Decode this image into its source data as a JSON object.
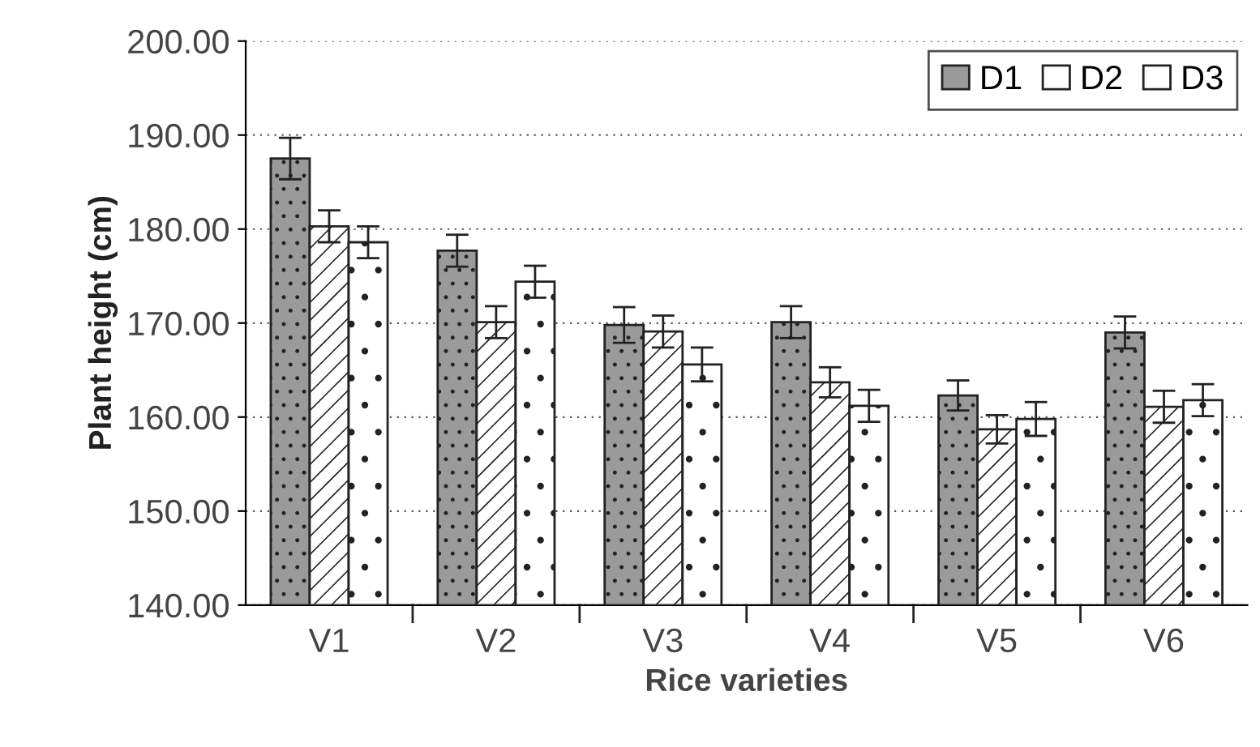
{
  "chart_data": {
    "type": "bar",
    "xlabel": "Rice varieties",
    "ylabel": "Plant height (cm)",
    "categories": [
      "V1",
      "V2",
      "V3",
      "V4",
      "V5",
      "V6"
    ],
    "series": [
      {
        "name": "D1",
        "color": "#9a9a9a",
        "values": [
          187.5,
          177.7,
          169.8,
          170.1,
          162.3,
          169.0
        ],
        "errors": [
          2.2,
          1.7,
          1.9,
          1.7,
          1.6,
          1.7
        ]
      },
      {
        "name": "D2",
        "color": "#ffffff",
        "values": [
          180.3,
          170.1,
          169.1,
          163.7,
          158.7,
          161.1
        ],
        "errors": [
          1.7,
          1.7,
          1.7,
          1.6,
          1.5,
          1.7
        ]
      },
      {
        "name": "D3",
        "color": "#ffffff",
        "values": [
          178.6,
          174.4,
          165.6,
          161.2,
          159.8,
          161.8
        ],
        "errors": [
          1.7,
          1.7,
          1.8,
          1.7,
          1.8,
          1.7
        ]
      }
    ],
    "ylim": [
      140,
      200
    ],
    "yticks": [
      {
        "value": 140,
        "label": "140.00"
      },
      {
        "value": 150,
        "label": "150.00"
      },
      {
        "value": 160,
        "label": "160.00"
      },
      {
        "value": 170,
        "label": "170.00"
      },
      {
        "value": 180,
        "label": "180.00"
      },
      {
        "value": 190,
        "label": "190.00"
      },
      {
        "value": 200,
        "label": "200.00"
      }
    ],
    "grid": "y",
    "legend": "top right"
  }
}
